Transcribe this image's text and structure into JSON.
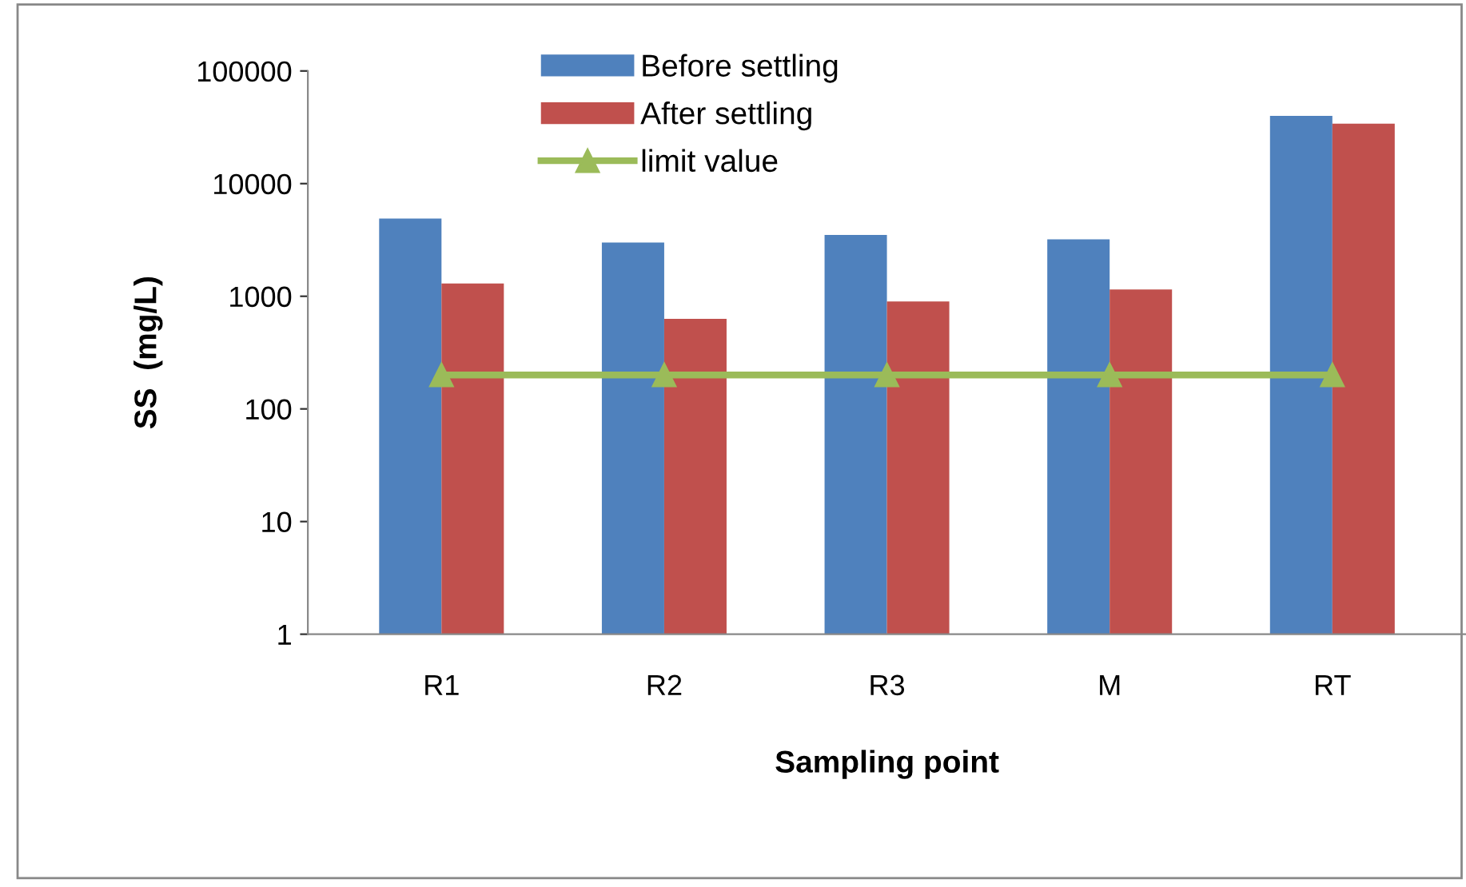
{
  "chart_data": {
    "type": "bar",
    "xlabel": "Sampling point",
    "ylabel": "SS  (mg/L)",
    "categories": [
      "R1",
      "R2",
      "R3",
      "M",
      "RT"
    ],
    "series": [
      {
        "name": "Before settling",
        "color": "#4f81bd",
        "values": [
          4900,
          3000,
          3500,
          3200,
          40000
        ]
      },
      {
        "name": "After settling",
        "color": "#c0504d",
        "values": [
          1300,
          630,
          900,
          1150,
          34000
        ]
      },
      {
        "name": "limit value",
        "color": "#9bbb59",
        "type": "line",
        "marker": "triangle",
        "values": [
          200,
          200,
          200,
          200,
          200
        ]
      }
    ],
    "log": "y",
    "ylim": [
      1,
      100000
    ],
    "yticks": [
      1,
      10,
      100,
      1000,
      10000,
      100000
    ],
    "grid": false,
    "legend": "top"
  }
}
